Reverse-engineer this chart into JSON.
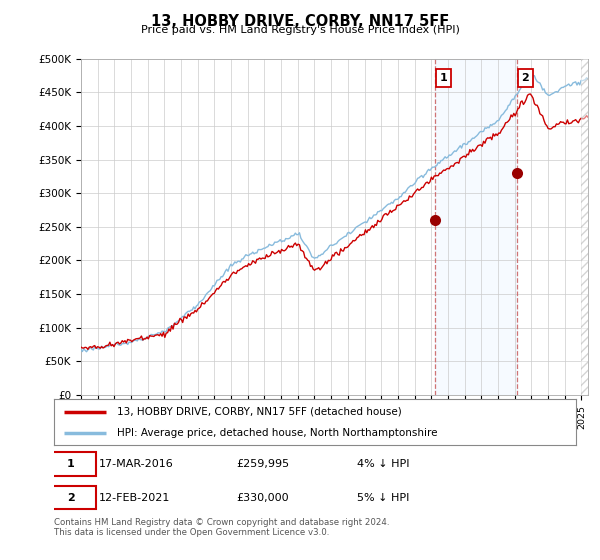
{
  "title": "13, HOBBY DRIVE, CORBY, NN17 5FF",
  "subtitle": "Price paid vs. HM Land Registry's House Price Index (HPI)",
  "ylabel_ticks": [
    "£0",
    "£50K",
    "£100K",
    "£150K",
    "£200K",
    "£250K",
    "£300K",
    "£350K",
    "£400K",
    "£450K",
    "£500K"
  ],
  "ytick_values": [
    0,
    50000,
    100000,
    150000,
    200000,
    250000,
    300000,
    350000,
    400000,
    450000,
    500000
  ],
  "ylim": [
    0,
    500000
  ],
  "xlim_start": 1995.0,
  "xlim_end": 2025.4,
  "sale1_date": 2016.21,
  "sale1_price": 259995,
  "sale1_label": "1",
  "sale2_date": 2021.12,
  "sale2_price": 330000,
  "sale2_label": "2",
  "line_color_property": "#cc0000",
  "line_color_hpi": "#88bbdd",
  "shade_color": "#ddeeff",
  "legend_label1": "13, HOBBY DRIVE, CORBY, NN17 5FF (detached house)",
  "legend_label2": "HPI: Average price, detached house, North Northamptonshire",
  "footer": "Contains HM Land Registry data © Crown copyright and database right 2024.\nThis data is licensed under the Open Government Licence v3.0.",
  "background_color": "#ffffff",
  "plot_bg_color": "#ffffff"
}
